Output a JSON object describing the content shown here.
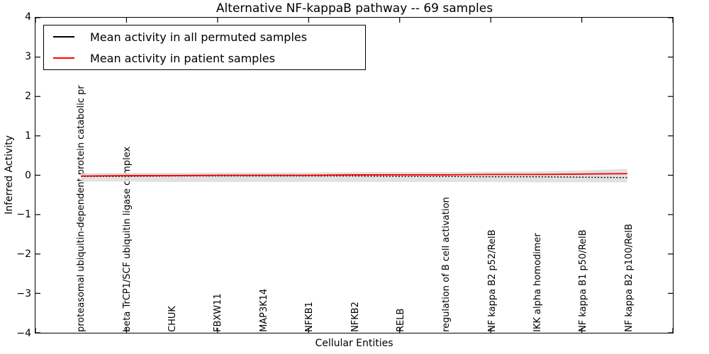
{
  "figure": {
    "title": "Alternative NF-kappaB pathway -- 69 samples"
  },
  "chart_data": {
    "type": "line",
    "title": "Alternative NF-kappaB pathway -- 69 samples",
    "xlabel": "Cellular Entities",
    "ylabel": "Inferred Activity",
    "xlim": [
      0,
      14
    ],
    "ylim": [
      -4,
      4
    ],
    "grid": false,
    "legend_position": "upper left",
    "ytick_values": [
      4,
      3,
      2,
      1,
      0,
      -1,
      -2,
      -3,
      -4
    ],
    "ytick_labels": [
      "4",
      "3",
      "2",
      "1",
      "0",
      "−1",
      "−2",
      "−3",
      "−4"
    ],
    "xticks_data": [
      0,
      2,
      4,
      6,
      8,
      10,
      12,
      14
    ],
    "categories": [
      "proteasomal ubiquitin-dependent protein catabolic pr",
      "beta TrCP1/SCF ubiquitin ligase complex",
      "CHUK",
      "FBXW11",
      "MAP3K14",
      "NFKB1",
      "NFKB2",
      "RELB",
      "regulation of B cell activation",
      "NF kappa B2 p52/RelB",
      "IKK alpha homodimer",
      "NF kappa B1 p50/RelB",
      "NF kappa B2 p100/RelB"
    ],
    "category_x": [
      1,
      2,
      3,
      4,
      5,
      6,
      7,
      8,
      9,
      10,
      11,
      12,
      13
    ],
    "series": [
      {
        "name": "Mean activity in all permuted samples",
        "color": "#000000",
        "style": "dotted",
        "dash": "2 2.4",
        "width": 1.4,
        "values": [
          -0.03,
          -0.03,
          -0.02,
          -0.02,
          -0.02,
          -0.02,
          -0.02,
          -0.03,
          -0.03,
          -0.04,
          -0.04,
          -0.05,
          -0.06
        ]
      },
      {
        "name": "Mean activity in patient samples",
        "color": "#ff0000",
        "style": "solid",
        "dash": "",
        "width": 1.8,
        "values": [
          -0.02,
          -0.01,
          -0.01,
          0.0,
          0.0,
          0.0,
          0.01,
          0.01,
          0.01,
          0.02,
          0.02,
          0.03,
          0.04
        ]
      }
    ],
    "band": {
      "name": "permuted-activity-range",
      "color": "#dedede",
      "upper": [
        0.05,
        0.06,
        0.06,
        0.07,
        0.07,
        0.07,
        0.08,
        0.08,
        0.08,
        0.09,
        0.1,
        0.12,
        0.16
      ],
      "lower": [
        -0.16,
        -0.16,
        -0.17,
        -0.17,
        -0.17,
        -0.17,
        -0.17,
        -0.17,
        -0.17,
        -0.17,
        -0.18,
        -0.18,
        -0.18
      ]
    }
  }
}
